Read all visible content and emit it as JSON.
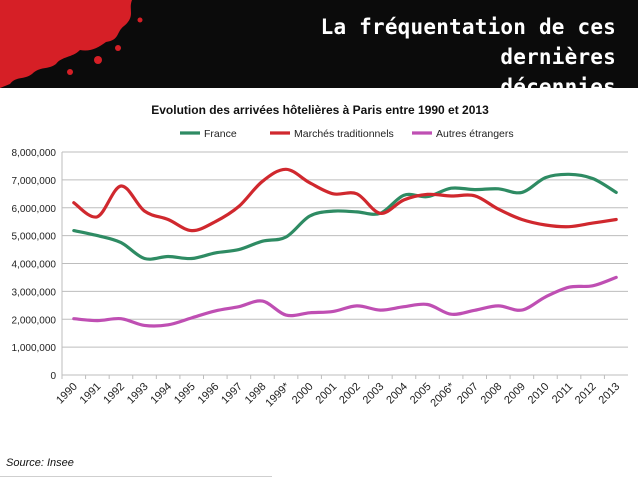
{
  "slide": {
    "title_line1": "La fréquentation de ces dernières",
    "title_line2": "décennies",
    "source": "Source: Insee"
  },
  "colors": {
    "header_bg": "#0b0b0b",
    "splash": "#d61f26",
    "france": "#2e8b63",
    "traditionnels": "#d0282e",
    "etrangers": "#bf4fb3"
  },
  "chart_data": {
    "type": "line",
    "title": "Evolution des arrivées hôtelières à Paris entre 1990 et 2013",
    "categories": [
      "1990",
      "1991",
      "1992",
      "1993",
      "1994",
      "1995",
      "1996",
      "1997",
      "1998",
      "1999*",
      "2000",
      "2001",
      "2002",
      "2003",
      "2004",
      "2005",
      "2006*",
      "2007",
      "2008",
      "2009",
      "2010",
      "2011",
      "2012",
      "2013"
    ],
    "ylim": [
      0,
      8000000
    ],
    "yticks": [
      0,
      1000000,
      2000000,
      3000000,
      4000000,
      5000000,
      6000000,
      7000000,
      8000000
    ],
    "ytick_labels": [
      "0",
      "1,000,000",
      "2,000,000",
      "3,000,000",
      "4,000,000",
      "5,000,000",
      "6,000,000",
      "7,000,000",
      "8,000,000"
    ],
    "grid": true,
    "legend_position": "top",
    "series": [
      {
        "name": "France",
        "color": "#2e8b63",
        "values": [
          5180000,
          5000000,
          4750000,
          4180000,
          4250000,
          4180000,
          4380000,
          4500000,
          4800000,
          4950000,
          5700000,
          5880000,
          5850000,
          5800000,
          6450000,
          6400000,
          6700000,
          6650000,
          6680000,
          6550000,
          7080000,
          7200000,
          7050000,
          6550000
        ]
      },
      {
        "name": "Marchés traditionnels",
        "color": "#d0282e",
        "values": [
          6180000,
          5680000,
          6780000,
          5880000,
          5580000,
          5180000,
          5500000,
          6050000,
          6950000,
          7380000,
          6900000,
          6500000,
          6500000,
          5800000,
          6280000,
          6480000,
          6420000,
          6430000,
          5950000,
          5580000,
          5380000,
          5320000,
          5450000,
          5580000
        ]
      },
      {
        "name": "Autres étrangers",
        "color": "#bf4fb3",
        "values": [
          2020000,
          1950000,
          2020000,
          1780000,
          1800000,
          2050000,
          2300000,
          2450000,
          2650000,
          2150000,
          2230000,
          2280000,
          2480000,
          2330000,
          2450000,
          2530000,
          2180000,
          2320000,
          2480000,
          2330000,
          2800000,
          3150000,
          3200000,
          3500000
        ]
      }
    ]
  }
}
